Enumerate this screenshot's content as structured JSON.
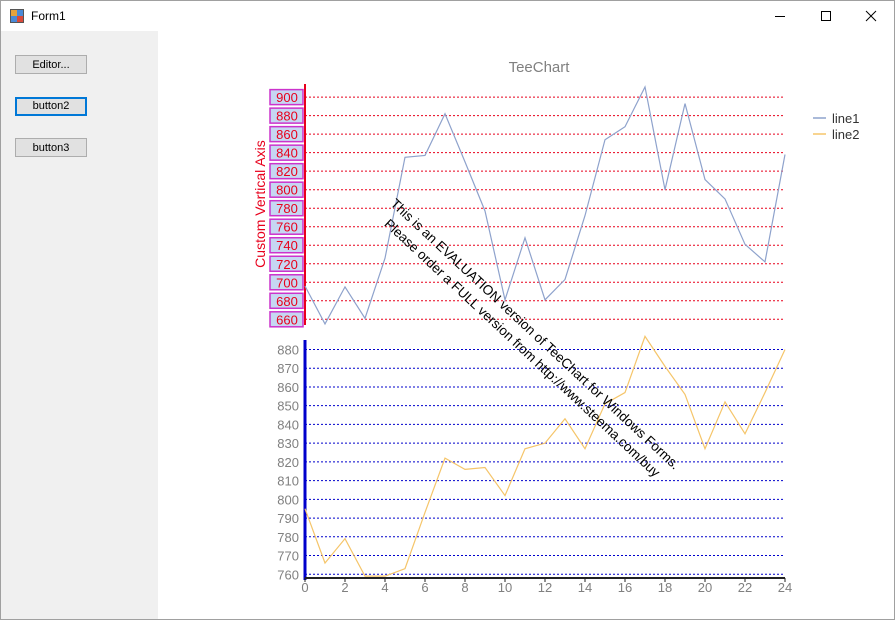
{
  "window": {
    "title": "Form1"
  },
  "buttons": [
    {
      "name": "editor-button",
      "label": "Editor..."
    },
    {
      "name": "button2",
      "label": "button2"
    },
    {
      "name": "button3",
      "label": "button3"
    }
  ],
  "colors": {
    "axis_top": "#e8001c",
    "axis_bottom": "#0000cc",
    "line1": "#8ea2cc",
    "line2": "#f5c56a",
    "label_box": "#cc33cc",
    "label_fill": "#c6d7f2",
    "title": "#808080"
  },
  "chart_data": {
    "type": "line",
    "title": "TeeChart",
    "ylabel": "Custom Vertical Axis",
    "watermark": [
      "This is an EVALUATION version of TeeChart for Windows Forms.",
      "Please order a FULL version from http://www.steema.com/buy"
    ],
    "x": [
      0,
      1,
      2,
      3,
      4,
      5,
      6,
      7,
      8,
      9,
      10,
      11,
      12,
      13,
      14,
      15,
      16,
      17,
      18,
      19,
      20,
      21,
      22,
      23,
      24
    ],
    "xlim": [
      0,
      24
    ],
    "xticks": [
      0,
      2,
      4,
      6,
      8,
      10,
      12,
      14,
      16,
      18,
      20,
      22,
      24
    ],
    "legend_position": "top-right",
    "axes": [
      {
        "name": "custom-axis",
        "ylim": [
          656,
          912
        ],
        "ticks": [
          900,
          880,
          860,
          840,
          820,
          800,
          780,
          760,
          740,
          720,
          700,
          680,
          660
        ]
      },
      {
        "name": "bottom-axis",
        "ylim": [
          758,
          884
        ],
        "ticks": [
          880,
          870,
          860,
          850,
          840,
          830,
          820,
          810,
          800,
          790,
          780,
          770,
          760
        ]
      }
    ],
    "series": [
      {
        "name": "line1",
        "axis": 0,
        "values": [
          696,
          655,
          695,
          661,
          726,
          835,
          837,
          882,
          830,
          777,
          681,
          748,
          681,
          703,
          772,
          854,
          868,
          911,
          800,
          893,
          811,
          790,
          741,
          722,
          838
        ]
      },
      {
        "name": "line2",
        "axis": 1,
        "values": [
          795,
          766,
          779,
          759,
          759,
          763,
          793,
          822,
          816,
          817,
          802,
          827,
          830,
          843,
          827,
          851,
          857,
          887,
          871,
          856,
          827,
          852,
          835,
          857,
          880
        ]
      }
    ]
  }
}
